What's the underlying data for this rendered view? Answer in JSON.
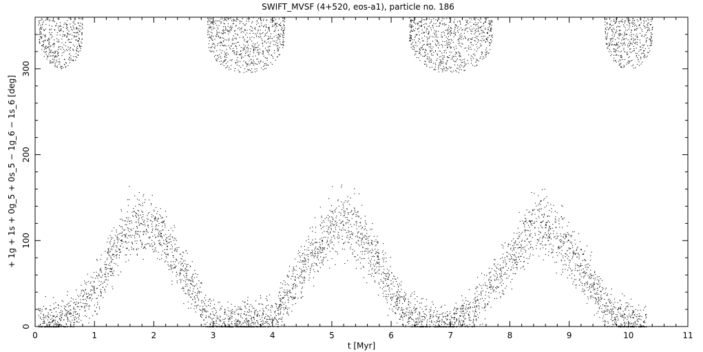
{
  "chart_data": {
    "type": "scatter",
    "title": "SWIFT_MVSF (4+520, eos-a1), particle no. 186",
    "xlabel": "t [Myr]",
    "ylabel": "+ 1g + 1s + 0g_5 + 0s_5 − 1g_6 − 1s_6 [deg]",
    "xlim": [
      0,
      11
    ],
    "ylim": [
      0,
      360
    ],
    "x_ticks": [
      "0",
      "1",
      "2",
      "3",
      "4",
      "5",
      "6",
      "7",
      "8",
      "9",
      "10",
      "11"
    ],
    "y_ticks": [
      "0",
      "100",
      "200",
      "300"
    ],
    "grid": false,
    "legend": "none",
    "marker_color": "#000000",
    "series": [
      {
        "description_points": "sawtooth circulation of resonant angle, dense point cloud",
        "envelope": {
          "x": [
            0.05,
            0.5,
            1.0,
            1.5,
            1.9,
            2.2,
            2.6,
            2.9,
            3.2,
            3.7,
            4.1,
            4.6,
            5.1,
            5.4,
            5.8,
            6.2,
            6.6,
            7.0,
            7.4,
            7.9,
            8.4,
            8.7,
            9.1,
            9.6,
            10.0,
            10.3
          ],
          "y_center": [
            5,
            8,
            40,
            110,
            120,
            100,
            50,
            10,
            5,
            5,
            20,
            80,
            120,
            115,
            70,
            20,
            5,
            5,
            20,
            70,
            120,
            115,
            80,
            25,
            5,
            3
          ]
        },
        "upper_clusters": [
          {
            "x_range": [
              0.05,
              0.8
            ],
            "y_range": [
              300,
              360
            ]
          },
          {
            "x_range": [
              2.9,
              4.2
            ],
            "y_range": [
              295,
              360
            ]
          },
          {
            "x_range": [
              6.3,
              7.7
            ],
            "y_range": [
              295,
              360
            ]
          },
          {
            "x_range": [
              9.6,
              10.4
            ],
            "y_range": [
              300,
              360
            ]
          }
        ]
      }
    ]
  }
}
